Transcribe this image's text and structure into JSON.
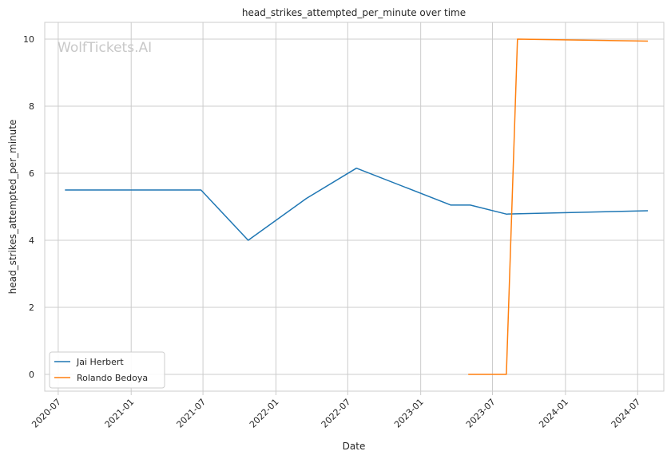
{
  "chart_data": {
    "type": "line",
    "title": "head_strikes_attempted_per_minute over time",
    "xlabel": "Date",
    "ylabel": "head_strikes_attempted_per_minute",
    "watermark": "WolfTickets.AI",
    "x_ticks": [
      "2020-07",
      "2021-01",
      "2021-07",
      "2022-01",
      "2022-07",
      "2023-01",
      "2023-07",
      "2024-01",
      "2024-07"
    ],
    "y_ticks": [
      0,
      2,
      4,
      6,
      8,
      10
    ],
    "xlim": [
      "2020-05-28",
      "2024-09-05"
    ],
    "ylim": [
      -0.5,
      10.5
    ],
    "grid": true,
    "legend_position": "lower-left",
    "series": [
      {
        "name": "Jai Herbert",
        "color": "#1f77b4",
        "points": [
          {
            "x": "2020-07-18",
            "y": 5.5
          },
          {
            "x": "2021-06-26",
            "y": 5.5
          },
          {
            "x": "2021-10-23",
            "y": 4.0
          },
          {
            "x": "2022-03-19",
            "y": 5.25
          },
          {
            "x": "2022-07-23",
            "y": 6.15
          },
          {
            "x": "2023-03-18",
            "y": 5.05
          },
          {
            "x": "2023-05-06",
            "y": 5.05
          },
          {
            "x": "2023-08-05",
            "y": 4.78
          },
          {
            "x": "2024-07-27",
            "y": 4.88
          }
        ]
      },
      {
        "name": "Rolando Bedoya",
        "color": "#ff7f0e",
        "points": [
          {
            "x": "2023-05-01",
            "y": 0
          },
          {
            "x": "2023-08-05",
            "y": 0
          },
          {
            "x": "2023-09-02",
            "y": 10.0
          },
          {
            "x": "2024-07-27",
            "y": 9.94
          }
        ]
      }
    ]
  }
}
